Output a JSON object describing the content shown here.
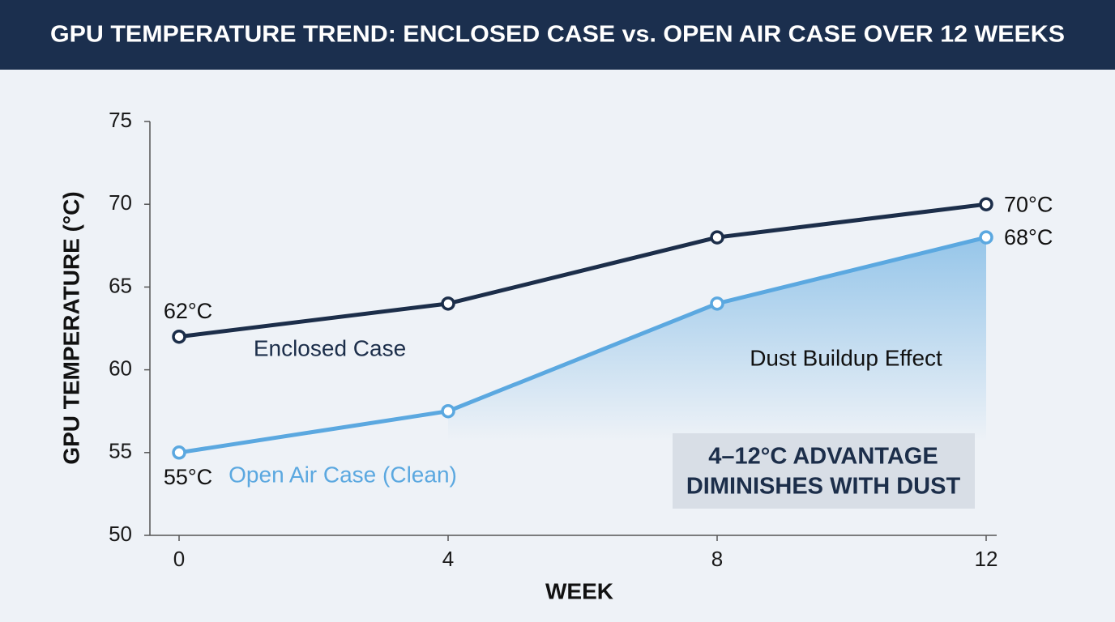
{
  "chart_data": {
    "type": "line",
    "title": "GPU TEMPERATURE TREND: ENCLOSED CASE vs. OPEN AIR CASE OVER 12 WEEKS",
    "x_label": "WEEK",
    "y_label": "GPU TEMPERATURE (°C)",
    "x": [
      0,
      4,
      8,
      12
    ],
    "xlim": [
      0,
      12
    ],
    "xticks": [
      0,
      4,
      8,
      12
    ],
    "ylim": [
      50,
      75
    ],
    "yticks": [
      50,
      55,
      60,
      65,
      70,
      75
    ],
    "series": [
      {
        "name": "Enclosed Case",
        "color": "#1c2e4a",
        "values": [
          62,
          64,
          68,
          70
        ],
        "value_labels": [
          "62°C",
          null,
          null,
          "70°C"
        ]
      },
      {
        "name": "Open Air Case (Clean)",
        "color": "#5ba8e0",
        "values": [
          55,
          57.5,
          64,
          68
        ],
        "value_labels": [
          "55°C",
          null,
          null,
          "68°C"
        ]
      }
    ],
    "annotation": "Dust Buildup Effect",
    "annotation_box": [
      "4–12°C ADVANTAGE",
      "DIMINISHES WITH DUST"
    ]
  }
}
